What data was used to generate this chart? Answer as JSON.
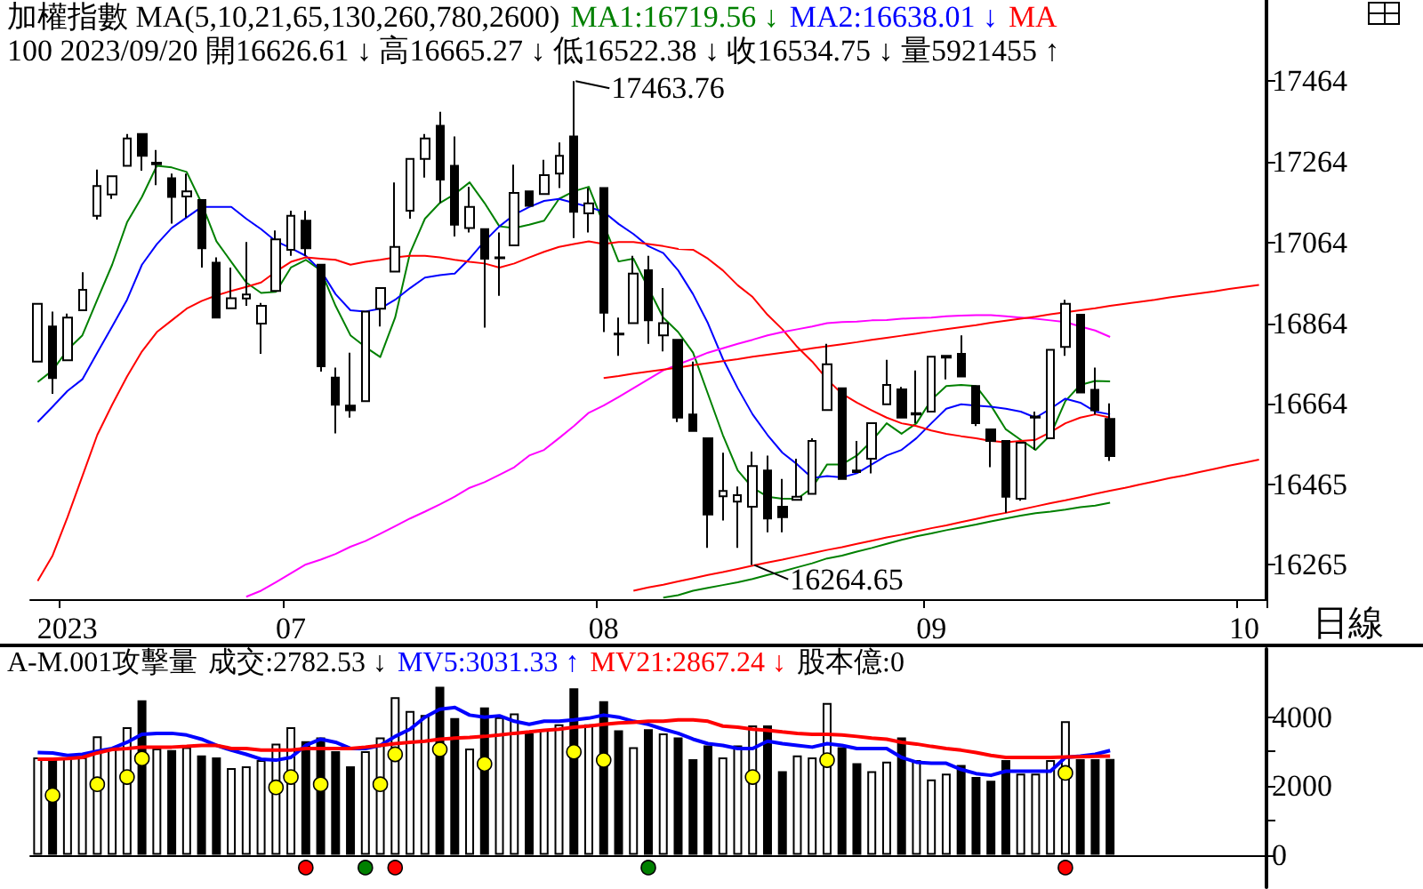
{
  "chart_data": [
    {
      "type": "candlestick",
      "title": "加權指數 MA(5,10,21,65,130,260,780,2600)",
      "subtitle": "100 2023/09/20 開16626.61 ↓ 高16665.27 ↓ 低16522.38 ↓ 收16534.75 ↓ 量5921455 ↑",
      "xlabel": "日線",
      "legend": "top right",
      "color": "#000000",
      "categories": [
        null,
        null,
        "2023",
        null,
        null,
        null,
        null,
        null,
        null,
        null,
        null,
        null,
        null,
        null,
        null,
        null,
        null,
        "07",
        null,
        null,
        null,
        null,
        null,
        null,
        null,
        null,
        null,
        null,
        null,
        null,
        null,
        null,
        null,
        null,
        null,
        null,
        null,
        null,
        "08",
        null,
        null,
        null,
        null,
        null,
        null,
        null,
        null,
        null,
        null,
        null,
        null,
        null,
        null,
        null,
        null,
        null,
        null,
        null,
        null,
        null,
        "09",
        null,
        null,
        null,
        null,
        null,
        null,
        null,
        null,
        null,
        null,
        null,
        null,
        null,
        null,
        null,
        null,
        null,
        null,
        null,
        null,
        "10",
        null
      ],
      "ohlc": [
        [
          16769,
          16912,
          16769,
          16912
        ],
        [
          16856,
          16893,
          16689,
          16728
        ],
        [
          16772,
          16888,
          16772,
          16878
        ],
        [
          16896,
          16990,
          16896,
          16947
        ],
        [
          17130,
          17245,
          17121,
          17204
        ],
        [
          17183,
          17228,
          17172,
          17228
        ],
        [
          17254,
          17333,
          17254,
          17322
        ],
        [
          17333,
          17333,
          17242,
          17279
        ],
        [
          17258,
          17293,
          17206,
          17262
        ],
        [
          17223,
          17235,
          17111,
          17177
        ],
        [
          17178,
          17235,
          17126,
          17191
        ],
        [
          17169,
          17169,
          17002,
          17050
        ],
        [
          17014,
          17027,
          16878,
          16878
        ],
        [
          16901,
          17002,
          16901,
          16926
        ],
        [
          16925,
          17065,
          16907,
          16935
        ],
        [
          16863,
          16914,
          16788,
          16907
        ],
        [
          16944,
          17094,
          16944,
          17072
        ],
        [
          17046,
          17143,
          17031,
          17130
        ],
        [
          17118,
          17143,
          17031,
          17050
        ],
        [
          17009,
          17009,
          16744,
          16757
        ],
        [
          16729,
          16754,
          16591,
          16662
        ],
        [
          16660,
          16791,
          16630,
          16648
        ],
        [
          16671,
          16893,
          16671,
          16893
        ],
        [
          16900,
          16951,
          16856,
          16951
        ],
        [
          16992,
          17213,
          16992,
          17053
        ],
        [
          17143,
          17271,
          17123,
          17271
        ],
        [
          17271,
          17333,
          17225,
          17322
        ],
        [
          17353,
          17388,
          17162,
          17220
        ],
        [
          17254,
          17327,
          17079,
          17108
        ],
        [
          17100,
          17202,
          17089,
          17152
        ],
        [
          17097,
          17097,
          16853,
          17024
        ],
        [
          17025,
          17089,
          16932,
          17027
        ],
        [
          17057,
          17257,
          17057,
          17187
        ],
        [
          17191,
          17191,
          17155,
          17155
        ],
        [
          17184,
          17269,
          17184,
          17231
        ],
        [
          17235,
          17312,
          17199,
          17279
        ],
        [
          17327,
          17463.76,
          17075,
          17140
        ],
        [
          17136,
          17199,
          17089,
          17161
        ],
        [
          17199,
          17199,
          16842,
          16890
        ],
        [
          16838,
          16878,
          16783,
          16836
        ],
        [
          16864,
          17031,
          16864,
          16987
        ],
        [
          16995,
          17031,
          16813,
          16871
        ],
        [
          16834,
          16951,
          16794,
          16864
        ],
        [
          16823,
          16823,
          16619,
          16630
        ],
        [
          16638,
          16769,
          16597,
          16597
        ],
        [
          16579,
          16579,
          16307,
          16390
        ],
        [
          16435,
          16543,
          16375,
          16448
        ],
        [
          16422,
          16459,
          16307,
          16438
        ],
        [
          16409,
          16546,
          16264.65,
          16510
        ],
        [
          16499,
          16536,
          16346,
          16380
        ],
        [
          16409,
          16478,
          16346,
          16383
        ],
        [
          16426,
          16528,
          16424,
          16434
        ],
        [
          16441,
          16579,
          16441,
          16572
        ],
        [
          16649,
          16813,
          16649,
          16762
        ],
        [
          16703,
          16703,
          16478,
          16478
        ],
        [
          16499,
          16572,
          16495,
          16495
        ],
        [
          16528,
          16616,
          16492,
          16616
        ],
        [
          16663,
          16773,
          16663,
          16711
        ],
        [
          16700,
          16706,
          16630,
          16630
        ],
        [
          16638,
          16747,
          16616,
          16641
        ],
        [
          16645,
          16781,
          16645,
          16781
        ],
        [
          16779,
          16783,
          16725,
          16783
        ],
        [
          16788,
          16834,
          16732,
          16732
        ],
        [
          16708,
          16708,
          16609,
          16616
        ],
        [
          16601,
          16601,
          16507,
          16572
        ],
        [
          16572,
          16572,
          16394,
          16434
        ],
        [
          16429,
          16568,
          16424,
          16568
        ],
        [
          16630,
          16645,
          16550,
          16633
        ],
        [
          16579,
          16798,
          16579,
          16798
        ],
        [
          16805,
          16922,
          16783,
          16912
        ],
        [
          16885,
          16885,
          16692,
          16692
        ],
        [
          16699,
          16754,
          16638,
          16648
        ],
        [
          16626.61,
          16665.27,
          16522.38,
          16534.75
        ],
        null,
        null,
        null,
        null,
        null,
        null,
        null,
        null,
        null,
        null
      ],
      "ylim": [
        16180,
        17665
      ],
      "yticks": [
        16265,
        16465,
        16664,
        16864,
        17064,
        17264,
        17464
      ],
      "series": [
        {
          "type": "line",
          "name": "MA1:16719.56 ↓",
          "color": "#008000",
          "values": [
            16718,
            16747,
            16798,
            16834,
            16922,
            17009,
            17114,
            17177,
            17254,
            17250,
            17239,
            17162,
            17067,
            17016,
            16965,
            16939,
            16942,
            17002,
            17021,
            16995,
            16907,
            16834,
            16805,
            16780,
            16878,
            17038,
            17123,
            17162,
            17184,
            17213,
            17162,
            17104,
            17100,
            17108,
            17118,
            17172,
            17191,
            17202,
            null,
            17017,
            17024,
            null,
            16878,
            16842,
            16791,
            16689,
            16587,
            16499,
            16456,
            16434,
            16429,
            16429,
            16456,
            16514,
            16514,
            16536,
            16572,
            16616,
            16590,
            16616,
            16674,
            16708,
            16711,
            16708,
            16660,
            16601,
            16575,
            16550,
            16587,
            16671,
            16711,
            16721,
            16720,
            null,
            null,
            null,
            null,
            null,
            null,
            null,
            null,
            null,
            null
          ]
        },
        {
          "type": "line",
          "name": "MA2:16638.01 ↓",
          "color": "#0000ff",
          "values": [
            16619,
            16657,
            16696,
            16725,
            16791,
            16856,
            16922,
            17009,
            17060,
            17100,
            17126,
            17152,
            17152,
            17152,
            17123,
            17097,
            17067,
            17050,
            17031,
            16995,
            16936,
            16896,
            16893,
            16900,
            16922,
            16951,
            16977,
            16983,
            16987,
            17024,
            17067,
            17104,
            17133,
            17152,
            17167,
            17172,
            17162,
            17152,
            17140,
            17110,
            17085,
            17055,
            17038,
            16995,
            16936,
            16864,
            16776,
            16703,
            16638,
            16587,
            16543,
            16514,
            16480,
            16485,
            16482,
            16492,
            16514,
            16536,
            16550,
            16579,
            16616,
            16652,
            16663,
            16660,
            16657,
            16652,
            16645,
            16630,
            16652,
            16677,
            16667,
            16645,
            16638,
            null,
            null,
            null,
            null,
            null,
            null,
            null,
            null,
            null,
            null
          ]
        },
        {
          "type": "line",
          "name": "MA",
          "color": "#ff0000",
          "values": [
            16225,
            16288,
            16383,
            16485,
            16587,
            16662,
            16732,
            16794,
            16842,
            16871,
            16900,
            16919,
            16933,
            16944,
            16954,
            16965,
            16992,
            17016,
            17027,
            17024,
            17021,
            17009,
            17016,
            17021,
            17027,
            17031,
            17031,
            17027,
            17021,
            17016,
            17012,
            17002,
            17012,
            17027,
            17041,
            17053,
            17060,
            17067,
            17060,
            17065,
            17065,
            17060,
            17055,
            17048,
            17046,
            17024,
            16995,
            16958,
            16929,
            16885,
            16849,
            16805,
            16769,
            16725,
            16689,
            16667,
            16648,
            16630,
            16616,
            16609,
            16598,
            16590,
            16584,
            16579,
            16572,
            16569,
            16572,
            16575,
            16594,
            16616,
            16630,
            16638,
            16630,
            null,
            null,
            null,
            null,
            null,
            null,
            null,
            null,
            null,
            null
          ]
        },
        {
          "type": "line",
          "color": "#ff00ff",
          "values": [
            null,
            null,
            null,
            null,
            null,
            null,
            null,
            null,
            null,
            null,
            null,
            null,
            null,
            null,
            16186,
            16201,
            16222,
            16244,
            16266,
            16278,
            16292,
            16310,
            16324,
            16342,
            16361,
            16380,
            16397,
            16415,
            16434,
            16456,
            16470,
            16488,
            16507,
            16536,
            16550,
            16579,
            16609,
            16642,
            16660,
            16681,
            16703,
            16725,
            16747,
            16762,
            16776,
            16791,
            16802,
            16813,
            16823,
            16834,
            16842,
            16849,
            16856,
            16864,
            16867,
            16868,
            16871,
            16872,
            16875,
            16877,
            16878,
            16881,
            16883,
            16884,
            16884,
            16881,
            16878,
            16875,
            16871,
            16867,
            16856,
            16846,
            16830,
            null,
            null,
            null,
            null,
            null,
            null,
            null,
            null,
            null,
            null
          ]
        },
        {
          "type": "line",
          "color": "#008000",
          "values": [
            null,
            null,
            null,
            null,
            null,
            null,
            null,
            null,
            null,
            null,
            null,
            null,
            null,
            null,
            null,
            null,
            null,
            null,
            null,
            null,
            null,
            null,
            null,
            null,
            null,
            null,
            null,
            null,
            null,
            null,
            null,
            null,
            null,
            null,
            null,
            null,
            null,
            null,
            null,
            null,
            null,
            null,
            16184,
            16190,
            16201,
            16208,
            16215,
            16222,
            16230,
            16240,
            16249,
            16259,
            16269,
            16281,
            16288,
            16298,
            16307,
            16317,
            16327,
            16336,
            16343,
            16351,
            16358,
            16365,
            16373,
            16380,
            16387,
            16393,
            16397,
            16402,
            16408,
            16412,
            16419,
            null,
            null,
            null,
            null,
            null,
            null,
            null,
            null,
            null,
            null
          ]
        },
        {
          "type": "line",
          "color": "#ff0000",
          "values": [
            null,
            null,
            null,
            null,
            null,
            null,
            null,
            null,
            null,
            null,
            null,
            null,
            null,
            null,
            null,
            null,
            null,
            null,
            null,
            null,
            null,
            null,
            null,
            null,
            null,
            null,
            null,
            null,
            null,
            null,
            null,
            null,
            null,
            null,
            null,
            null,
            null,
            null,
            16728,
            16733,
            16739,
            16744,
            16749,
            16754,
            16760,
            16765,
            16770,
            16775,
            16781,
            16786,
            16791,
            16796,
            16802,
            16807,
            16812,
            16817,
            16823,
            16828,
            16833,
            16838,
            16844,
            16849,
            16854,
            16859,
            16865,
            16870,
            16875,
            16880,
            16886,
            16891,
            16896,
            16901,
            16907,
            16912,
            16917,
            16922,
            16928,
            16933,
            16938,
            16943,
            16949,
            16954,
            16959
          ]
        },
        {
          "type": "line",
          "color": "#ff0000",
          "values": [
            null,
            null,
            null,
            null,
            null,
            null,
            null,
            null,
            null,
            null,
            null,
            null,
            null,
            null,
            null,
            null,
            null,
            null,
            null,
            null,
            null,
            null,
            null,
            null,
            null,
            null,
            null,
            null,
            null,
            null,
            null,
            null,
            null,
            null,
            null,
            null,
            null,
            null,
            null,
            null,
            16201,
            16209,
            16216,
            16224,
            16232,
            16240,
            16247,
            16255,
            16263,
            16271,
            16278,
            16286,
            16294,
            16302,
            16309,
            16317,
            16325,
            16333,
            16340,
            16348,
            16356,
            16363,
            16371,
            16379,
            16387,
            16394,
            16402,
            16410,
            16418,
            16425,
            16433,
            16441,
            16449,
            16456,
            16464,
            16472,
            16480,
            16487,
            16495,
            16503,
            16511,
            16518,
            16526
          ]
        }
      ],
      "annotations": [
        "17463.76",
        "16264.65"
      ]
    },
    {
      "type": "bar",
      "title": "A-M.001攻擊量",
      "legend": "top right",
      "tick_labels": "y",
      "categories": [
        null,
        null,
        "2023",
        null,
        null,
        null,
        null,
        null,
        null,
        null,
        null,
        null,
        null,
        null,
        null,
        null,
        null,
        "07",
        null,
        null,
        null,
        null,
        null,
        null,
        null,
        null,
        null,
        null,
        null,
        null,
        null,
        null,
        null,
        null,
        null,
        null,
        null,
        null,
        "08",
        null,
        null,
        null,
        null,
        null,
        null,
        null,
        null,
        null,
        null,
        null,
        null,
        null,
        null,
        null,
        null,
        null,
        null,
        null,
        null,
        null,
        "09",
        null,
        null,
        null,
        null,
        null,
        null,
        null,
        null,
        null,
        null,
        null,
        null,
        null,
        null,
        null,
        null,
        null,
        null,
        null,
        null,
        "10",
        null
      ],
      "ylim": [
        -940,
        5980
      ],
      "yticks": [
        0,
        {
          "value": 1000,
          "label": null
        },
        2000,
        {
          "value": 3000,
          "label": null
        },
        4000
      ],
      "series": [
        {
          "type": "bar",
          "color": "#000000",
          "values": [
            2830,
            2830,
            2830,
            2830,
            3440,
            3090,
            3710,
            4490,
            3090,
            3040,
            3130,
            2890,
            2830,
            2520,
            2570,
            2750,
            3230,
            3710,
            3300,
            3410,
            3010,
            2570,
            3010,
            3410,
            4580,
            4180,
            4060,
            4880,
            3970,
            3090,
            4280,
            4000,
            4110,
            3530,
            3650,
            3790,
            4840,
            3790,
            4460,
            3620,
            3130,
            3650,
            3530,
            3410,
            2780,
            3180,
            2830,
            3180,
            3760,
            3760,
            2430,
            2890,
            2830,
            4410,
            3130,
            2660,
            2430,
            2710,
            3410,
            2750,
            2190,
            2360,
            2610,
            2260,
            2150,
            2750,
            2360,
            2360,
            2750,
            3880,
            2780,
            2780,
            2782.53,
            null,
            null,
            null,
            null,
            null,
            null,
            null,
            null,
            null,
            null
          ],
          "colors": [
            "#ffffff",
            "#000000",
            "#ffffff",
            "#ffffff",
            "#ffffff",
            "#ffffff",
            "#ffffff",
            "#000000",
            "#ffffff",
            "#000000",
            "#ffffff",
            "#000000",
            "#000000",
            "#ffffff",
            "#ffffff",
            "#ffffff",
            "#ffffff",
            "#ffffff",
            "#000000",
            "#000000",
            "#000000",
            "#000000",
            "#ffffff",
            "#ffffff",
            "#ffffff",
            "#ffffff",
            "#ffffff",
            "#000000",
            "#000000",
            "#ffffff",
            "#000000",
            "#ffffff",
            "#ffffff",
            "#000000",
            "#ffffff",
            "#ffffff",
            "#000000",
            "#ffffff",
            "#000000",
            "#000000",
            "#ffffff",
            "#000000",
            "#ffffff",
            "#000000",
            "#000000",
            "#000000",
            "#ffffff",
            "#ffffff",
            "#ffffff",
            "#000000",
            "#000000",
            "#ffffff",
            "#ffffff",
            "#ffffff",
            "#000000",
            "#000000",
            "#ffffff",
            "#ffffff",
            "#000000",
            "#ffffff",
            "#ffffff",
            "#ffffff",
            "#000000",
            "#000000",
            "#000000",
            "#000000",
            "#ffffff",
            "#ffffff",
            "#ffffff",
            "#ffffff",
            "#000000",
            "#000000",
            "#000000",
            null,
            null,
            null,
            null,
            null,
            null,
            null,
            null,
            null,
            null
          ]
        },
        {
          "type": "line",
          "name": "MV5:3031.33 ↑",
          "color": "#0000ff",
          "values": [
            2970,
            2960,
            2890,
            2920,
            3010,
            3090,
            3270,
            3500,
            3530,
            3530,
            3480,
            3360,
            3180,
            3040,
            2920,
            2780,
            2750,
            2830,
            3180,
            3360,
            3270,
            3090,
            3090,
            3180,
            3440,
            3650,
            4000,
            4230,
            4280,
            4060,
            4000,
            4040,
            3880,
            3790,
            3880,
            3880,
            3920,
            3970,
            4060,
            4000,
            3880,
            3790,
            3650,
            3530,
            3360,
            3230,
            3180,
            3090,
            3090,
            3300,
            3230,
            3180,
            3130,
            3230,
            3180,
            3090,
            3090,
            3090,
            2830,
            2690,
            2660,
            2660,
            2480,
            2360,
            2310,
            2430,
            2430,
            2430,
            2430,
            2830,
            2870,
            2920,
            3030,
            null,
            null,
            null,
            null,
            null,
            null,
            null,
            null,
            null,
            null
          ]
        },
        {
          "type": "line",
          "name": "MV21:2867.24 ↓",
          "color": "#ff0000",
          "values": [
            2780,
            2780,
            2800,
            2830,
            2960,
            3060,
            3090,
            3130,
            3130,
            3130,
            3150,
            3180,
            3180,
            3090,
            3090,
            3040,
            3040,
            3040,
            3090,
            3090,
            3090,
            3090,
            3130,
            3180,
            3230,
            3270,
            3300,
            3360,
            3390,
            3410,
            3440,
            3480,
            3530,
            3570,
            3620,
            3650,
            3710,
            3740,
            3790,
            3830,
            3850,
            3880,
            3880,
            3920,
            3920,
            3880,
            3740,
            3710,
            3650,
            3620,
            3570,
            3530,
            3500,
            3500,
            3480,
            3440,
            3390,
            3360,
            3270,
            3220,
            3150,
            3090,
            3040,
            2970,
            2890,
            2830,
            2830,
            2830,
            2830,
            2840,
            2850,
            2860,
            2870,
            null,
            null,
            null,
            null,
            null,
            null,
            null,
            null,
            null,
            null
          ]
        },
        {
          "type": "scatter",
          "marker": "circle",
          "color": "#ffff00",
          "values": [
            null,
            1730,
            null,
            null,
            2050,
            null,
            2260,
            2800,
            null,
            null,
            null,
            null,
            null,
            null,
            null,
            null,
            1960,
            2260,
            null,
            2050,
            null,
            null,
            null,
            2050,
            2920,
            null,
            null,
            3060,
            null,
            null,
            2640,
            null,
            null,
            null,
            null,
            null,
            2990,
            null,
            2750,
            null,
            null,
            null,
            null,
            null,
            null,
            null,
            null,
            null,
            2260,
            null,
            null,
            null,
            null,
            2750,
            null,
            null,
            null,
            null,
            null,
            null,
            null,
            null,
            null,
            null,
            null,
            null,
            null,
            null,
            null,
            2380,
            null,
            null,
            null,
            null,
            null,
            null,
            null,
            null,
            null,
            null,
            null,
            null,
            null
          ]
        },
        {
          "type": "scatter",
          "marker": "circle",
          "color": "#ff0000",
          "values": [
            null,
            null,
            null,
            null,
            null,
            null,
            null,
            null,
            null,
            null,
            null,
            null,
            null,
            null,
            null,
            null,
            null,
            null,
            -370,
            null,
            null,
            null,
            null,
            null,
            -370,
            null,
            null,
            null,
            null,
            null,
            null,
            null,
            null,
            null,
            null,
            null,
            null,
            null,
            null,
            null,
            null,
            null,
            null,
            null,
            null,
            null,
            null,
            null,
            null,
            null,
            null,
            null,
            null,
            null,
            null,
            null,
            null,
            null,
            null,
            null,
            null,
            null,
            null,
            null,
            null,
            null,
            null,
            null,
            null,
            -370,
            null,
            null,
            null,
            null,
            null,
            null,
            null,
            null,
            null,
            null,
            null,
            null,
            null
          ]
        },
        {
          "type": "scatter",
          "marker": "circle",
          "color": "#008000",
          "values": [
            null,
            null,
            null,
            null,
            null,
            null,
            null,
            null,
            null,
            null,
            null,
            null,
            null,
            null,
            null,
            null,
            null,
            null,
            null,
            null,
            null,
            null,
            -370,
            null,
            null,
            null,
            null,
            null,
            null,
            null,
            null,
            null,
            null,
            null,
            null,
            null,
            null,
            null,
            null,
            null,
            null,
            -370,
            null,
            null,
            null,
            null,
            null,
            null,
            null,
            null,
            null,
            null,
            null,
            null,
            null,
            null,
            null,
            null,
            null,
            null,
            null,
            null,
            null,
            null,
            null,
            null,
            null,
            null,
            null,
            null,
            null,
            null,
            null,
            null,
            null,
            null,
            null,
            null,
            null,
            null,
            null,
            null,
            null
          ]
        }
      ],
      "annotations": [
        "成交:2782.53 ↓",
        "股本億:0"
      ]
    }
  ]
}
